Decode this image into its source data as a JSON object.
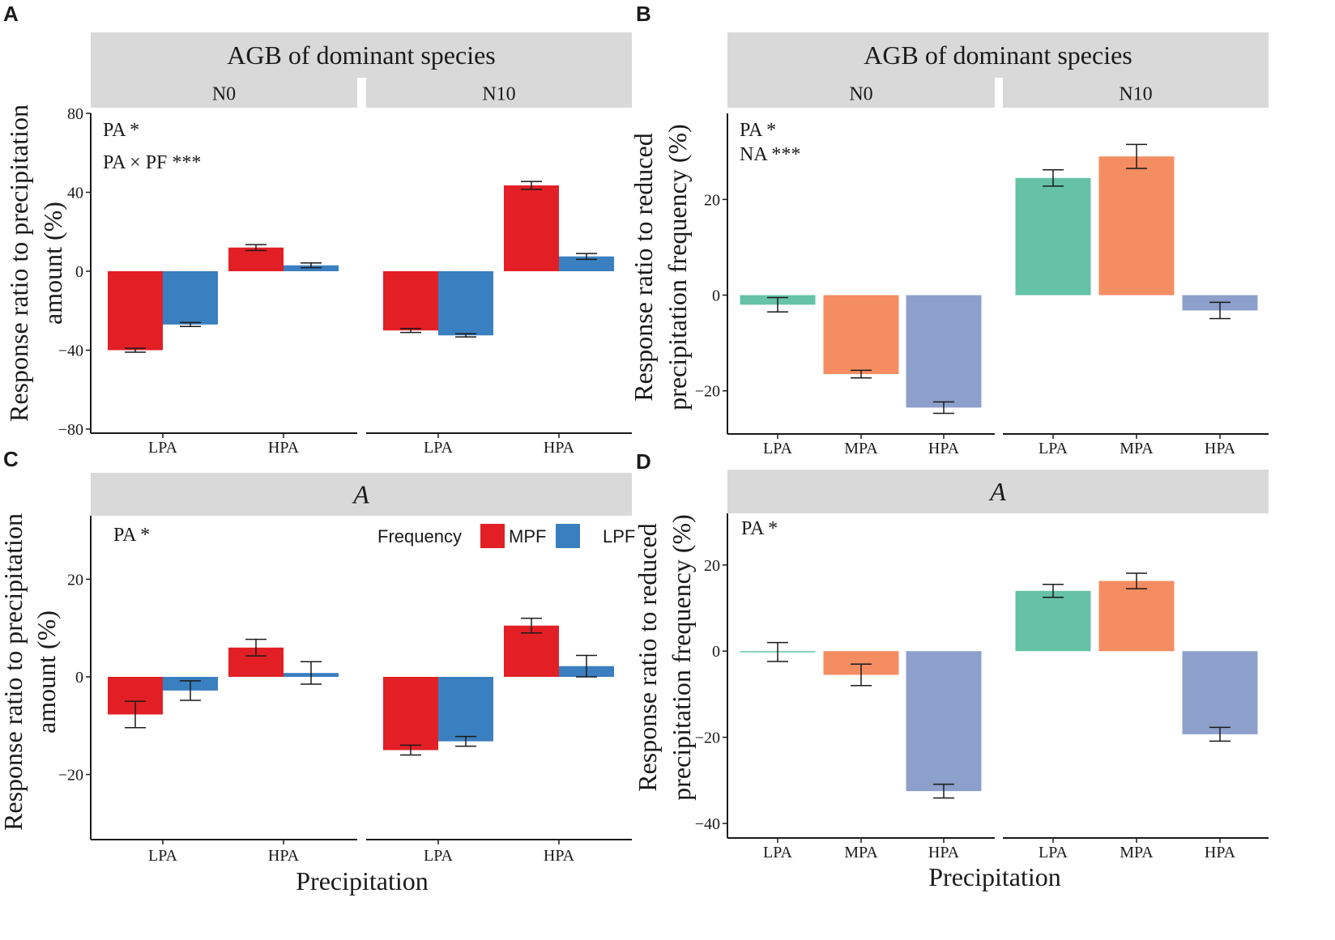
{
  "colors": {
    "MPF": "#e31f26",
    "LPF": "#3a7fbf",
    "LPA": "#66c2a5",
    "MPA": "#f58d62",
    "HPA": "#8da0cb",
    "strip": "#d9d9d9",
    "axis": "#1a1a1a"
  },
  "xlabel": "Precipitation",
  "chart_data": [
    {
      "panel": "A",
      "type": "bar",
      "title": "AGB of dominant species",
      "ylabel": [
        "Response ratio to precipitation",
        "amount (%)"
      ],
      "ylim": [
        -80,
        80
      ],
      "yticks": [
        -80,
        -40,
        0,
        40,
        80
      ],
      "facets": [
        "N0",
        "N10"
      ],
      "categories": [
        "LPA",
        "HPA"
      ],
      "annotations": [
        "PA  *",
        "PA × PF  ***"
      ],
      "series": [
        {
          "name": "MPF",
          "values": {
            "N0": [
              -40,
              12
            ],
            "N10": [
              -30,
              43.5
            ]
          },
          "errors": {
            "N0": [
              1,
              1.5
            ],
            "N10": [
              1,
              2
            ]
          }
        },
        {
          "name": "LPF",
          "values": {
            "N0": [
              -27,
              3
            ],
            "N10": [
              -32.5,
              7.5
            ]
          },
          "errors": {
            "N0": [
              1,
              1.2
            ],
            "N10": [
              0.8,
              1.5
            ]
          }
        }
      ]
    },
    {
      "panel": "B",
      "type": "bar",
      "title": "AGB of dominant species",
      "ylabel": [
        "Response ratio to reduced",
        "precipitation frequency (%)"
      ],
      "ylim": [
        -28,
        38
      ],
      "yticks": [
        -20,
        0,
        20
      ],
      "facets": [
        "N0",
        "N10"
      ],
      "categories": [
        "LPA",
        "MPA",
        "HPA"
      ],
      "annotations": [
        "PA  *",
        "NA  ***"
      ],
      "values": {
        "N0": [
          -2,
          -16.5,
          -23.5
        ],
        "N10": [
          24.5,
          29,
          -3.2
        ]
      },
      "errors": {
        "N0": [
          1.5,
          0.8,
          1.2
        ],
        "N10": [
          1.7,
          2.5,
          1.7
        ]
      }
    },
    {
      "panel": "C",
      "type": "bar",
      "title": "A",
      "ylabel": [
        "Response ratio to precipitation",
        "amount (%)"
      ],
      "ylim": [
        -33,
        33
      ],
      "yticks": [
        -20,
        0,
        20
      ],
      "facets": [
        "",
        ""
      ],
      "categories": [
        "LPA",
        "HPA"
      ],
      "annotations": [
        "PA  *"
      ],
      "legend": {
        "title": "Frequency",
        "entries": [
          "MPF",
          "LPF"
        ],
        "position": "top-right"
      },
      "series": [
        {
          "name": "MPF",
          "values": {
            "N0": [
              -7.7,
              6
            ],
            "N10": [
              -15,
              10.5
            ]
          },
          "errors": {
            "N0": [
              2.7,
              1.7
            ],
            "N10": [
              1,
              1.5
            ]
          }
        },
        {
          "name": "LPF",
          "values": {
            "N0": [
              -2.8,
              0.8
            ],
            "N10": [
              -13.2,
              2.2
            ]
          },
          "errors": {
            "N0": [
              2,
              2.3
            ],
            "N10": [
              1,
              2.2
            ]
          }
        }
      ]
    },
    {
      "panel": "D",
      "type": "bar",
      "title": "A",
      "ylabel": [
        "Response ratio to reduced",
        "precipitation  frequency (%)"
      ],
      "ylim": [
        -43,
        32
      ],
      "yticks": [
        -40,
        -20,
        0,
        20
      ],
      "facets": [
        "",
        ""
      ],
      "categories": [
        "LPA",
        "MPA",
        "HPA"
      ],
      "annotations": [
        "PA  *"
      ],
      "values": {
        "N0": [
          -0.2,
          -5.5,
          -32.5
        ],
        "N10": [
          14,
          16.3,
          -19.3
        ]
      },
      "errors": {
        "N0": [
          2.2,
          2.5,
          1.6
        ],
        "N10": [
          1.5,
          1.8,
          1.6
        ]
      }
    }
  ]
}
